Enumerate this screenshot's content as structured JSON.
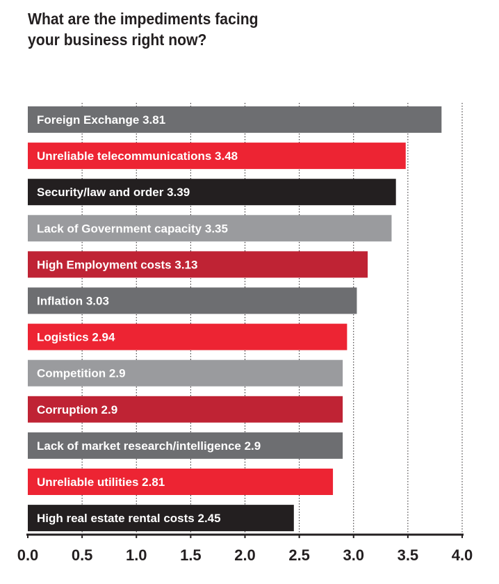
{
  "chart_data": {
    "type": "bar",
    "orientation": "horizontal",
    "title_lines": [
      "What are the impediments facing",
      "your business right now?"
    ],
    "categories": [
      "Foreign Exchange",
      "Unreliable telecommunications",
      "Security/law and order",
      "Lack of Government capacity",
      "High Employment costs",
      "Inflation",
      "Logistics",
      "Competition",
      "Corruption",
      "Lack of market research/intelligence",
      "Unreliable utilities",
      "High real estate rental costs"
    ],
    "values": [
      3.81,
      3.48,
      3.39,
      3.35,
      3.13,
      3.03,
      2.94,
      2.9,
      2.9,
      2.9,
      2.81,
      2.45
    ],
    "value_labels": [
      "3.81",
      "3.48",
      "3.39",
      "3.35",
      "3.13",
      "3.03",
      "2.94",
      "2.9",
      "2.9",
      "2.9",
      "2.81",
      "2.45"
    ],
    "bar_colors": [
      "#6d6e71",
      "#ed2433",
      "#231f20",
      "#9a9b9e",
      "#bf2334",
      "#6d6e71",
      "#ed2433",
      "#9a9b9e",
      "#bf2334",
      "#6d6e71",
      "#ed2433",
      "#231f20"
    ],
    "xlim": [
      0,
      4.0
    ],
    "xticks": [
      "0.0",
      "0.5",
      "1.0",
      "1.5",
      "2.0",
      "2.5",
      "3.0",
      "3.5",
      "4.0"
    ],
    "grid": "dotted vertical",
    "axis_color": "#231f20",
    "label_color": "#ffffff"
  }
}
